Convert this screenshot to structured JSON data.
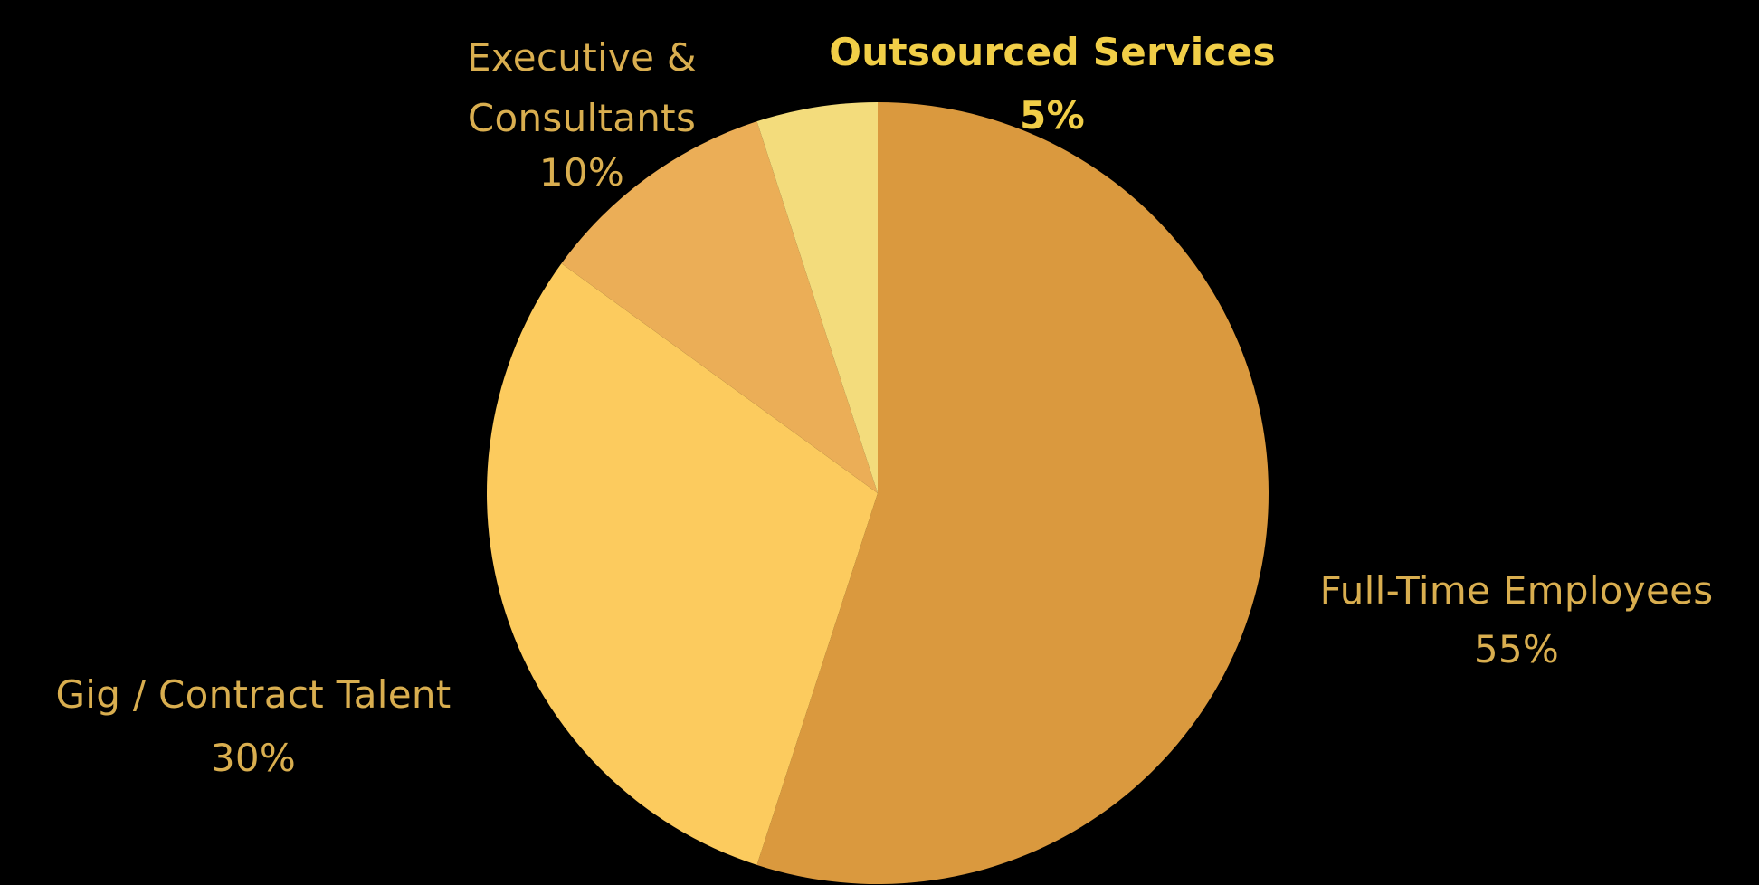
{
  "chart_data": {
    "type": "pie",
    "title": "",
    "start_angle_deg": 0,
    "direction": "clockwise",
    "slices": [
      {
        "name": "Full-Time Employees",
        "label_line1": "Full-Time Employees",
        "label_line2": "",
        "pct_label": "55%",
        "value": 55,
        "color": "#DA993E",
        "text_color": "#D9AE4F",
        "bold": false
      },
      {
        "name": "Gig / Contract Talent",
        "label_line1": "Gig / Contract Talent",
        "label_line2": "",
        "pct_label": "30%",
        "value": 30,
        "color": "#FCCB5E",
        "text_color": "#D9AE4F",
        "bold": false
      },
      {
        "name": "Executive & Consultants",
        "label_line1": "Executive &",
        "label_line2": "Consultants",
        "pct_label": "10%",
        "value": 10,
        "color": "#EBAE57",
        "text_color": "#D9AE4F",
        "bold": false
      },
      {
        "name": "Outsourced Services",
        "label_line1": "Outsourced Services",
        "label_line2": "",
        "pct_label": "5%",
        "value": 5,
        "color": "#F3DC7C",
        "text_color": "#F1CE47",
        "bold": true
      }
    ]
  }
}
